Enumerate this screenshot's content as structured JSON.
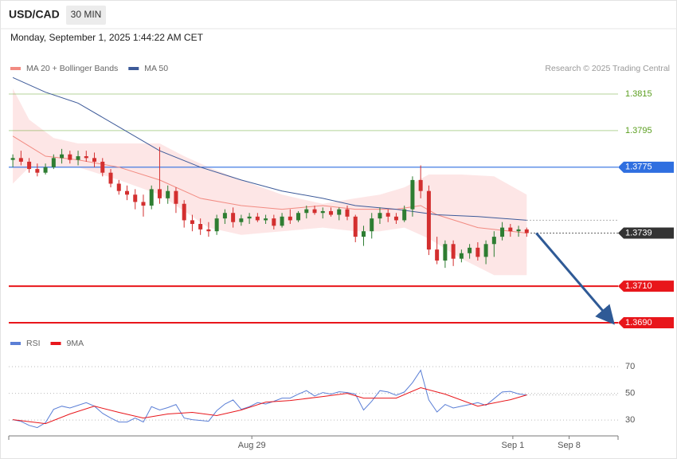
{
  "header": {
    "symbol": "USD/CAD",
    "interval": "30 MIN",
    "timestamp": "Monday, September 1, 2025 1:44:22 AM CET"
  },
  "chart_data": [
    {
      "type": "candlestick",
      "credit": "Research © 2025 Trading Central",
      "up_color": "#2e7d32",
      "down_color": "#d32f2f",
      "xlim": [
        -0.5,
        74.2
      ],
      "ylim": [
        1.3685,
        1.3825
      ],
      "open": [
        1.3779,
        1.378,
        1.3778,
        1.3774,
        1.3772,
        1.3775,
        1.378,
        1.3782,
        1.3779,
        1.3781,
        1.378,
        1.3778,
        1.3772,
        1.3766,
        1.3762,
        1.376,
        1.3756,
        1.3754,
        1.3763,
        1.3758,
        1.3762,
        1.3755,
        1.3746,
        1.3744,
        1.3741,
        1.374,
        1.3747,
        1.375,
        1.3745,
        1.3747,
        1.3748,
        1.3746,
        1.3747,
        1.3743,
        1.3748,
        1.3746,
        1.375,
        1.3752,
        1.375,
        1.3751,
        1.3749,
        1.3752,
        1.3748,
        1.3737,
        1.374,
        1.3747,
        1.375,
        1.3748,
        1.3746,
        1.3752,
        1.3768,
        1.3762,
        1.373,
        1.3724,
        1.3733,
        1.3725,
        1.3728,
        1.3731,
        1.3726,
        1.3733,
        1.3737,
        1.3742,
        1.374,
        1.3741
      ],
      "high": [
        1.3782,
        1.3784,
        1.378,
        1.3777,
        1.3777,
        1.3782,
        1.3785,
        1.3784,
        1.3784,
        1.3784,
        1.3783,
        1.378,
        1.3774,
        1.3768,
        1.3765,
        1.3763,
        1.376,
        1.3765,
        1.3786,
        1.3765,
        1.3764,
        1.3757,
        1.3749,
        1.3747,
        1.3745,
        1.3749,
        1.3752,
        1.3753,
        1.3749,
        1.375,
        1.375,
        1.3749,
        1.3749,
        1.375,
        1.3752,
        1.3751,
        1.3754,
        1.3754,
        1.3753,
        1.3753,
        1.3753,
        1.3754,
        1.3749,
        1.3743,
        1.375,
        1.3753,
        1.3752,
        1.375,
        1.3754,
        1.377,
        1.3776,
        1.3765,
        1.3737,
        1.3735,
        1.3735,
        1.373,
        1.3733,
        1.3734,
        1.3735,
        1.374,
        1.3745,
        1.3744,
        1.3743,
        1.3742
      ],
      "low": [
        1.3775,
        1.3776,
        1.3772,
        1.377,
        1.3771,
        1.3774,
        1.3777,
        1.3777,
        1.3776,
        1.3778,
        1.3775,
        1.377,
        1.3764,
        1.376,
        1.3757,
        1.3752,
        1.3748,
        1.3752,
        1.3755,
        1.3755,
        1.375,
        1.3742,
        1.374,
        1.3738,
        1.3737,
        1.3738,
        1.3744,
        1.3742,
        1.3743,
        1.3744,
        1.3745,
        1.3744,
        1.3741,
        1.3742,
        1.3744,
        1.3745,
        1.3747,
        1.3749,
        1.3747,
        1.3748,
        1.3746,
        1.3746,
        1.3734,
        1.3732,
        1.3736,
        1.3744,
        1.3745,
        1.3744,
        1.3745,
        1.3748,
        1.3758,
        1.3727,
        1.3722,
        1.372,
        1.3721,
        1.3723,
        1.3725,
        1.3724,
        1.3722,
        1.3726,
        1.3735,
        1.3737,
        1.3737,
        1.3737
      ],
      "close": [
        1.378,
        1.3778,
        1.3774,
        1.3772,
        1.3775,
        1.378,
        1.3782,
        1.3779,
        1.3781,
        1.378,
        1.3778,
        1.3772,
        1.3766,
        1.3762,
        1.376,
        1.3756,
        1.3754,
        1.3763,
        1.3758,
        1.3762,
        1.3755,
        1.3746,
        1.3744,
        1.3741,
        1.374,
        1.3747,
        1.375,
        1.3745,
        1.3747,
        1.3748,
        1.3746,
        1.3747,
        1.3743,
        1.3748,
        1.3746,
        1.375,
        1.3752,
        1.375,
        1.3751,
        1.3749,
        1.3752,
        1.3748,
        1.3737,
        1.374,
        1.3747,
        1.375,
        1.3748,
        1.3746,
        1.3752,
        1.3768,
        1.3762,
        1.373,
        1.3724,
        1.3733,
        1.3725,
        1.3728,
        1.3731,
        1.3726,
        1.3733,
        1.3737,
        1.3742,
        1.374,
        1.3741,
        1.3739
      ],
      "bands": {
        "color": "#fde2e2",
        "x": [
          0,
          2,
          5,
          8,
          13,
          18,
          21,
          24,
          28,
          33,
          38,
          42,
          45,
          48,
          51,
          55,
          59,
          63
        ],
        "upper": [
          1.3818,
          1.3801,
          1.3791,
          1.3788,
          1.3788,
          1.3788,
          1.3781,
          1.3775,
          1.3768,
          1.376,
          1.3755,
          1.3758,
          1.376,
          1.3764,
          1.3771,
          1.3771,
          1.377,
          1.376
        ],
        "lower": [
          1.3766,
          1.3775,
          1.3775,
          1.3775,
          1.3768,
          1.376,
          1.3751,
          1.3742,
          1.3738,
          1.374,
          1.3742,
          1.374,
          1.374,
          1.3742,
          1.3736,
          1.3725,
          1.3716,
          1.3716
        ]
      },
      "series": [
        {
          "name": "MA 20 + Bollinger Bands",
          "color": "#f28b82",
          "x": [
            0,
            4,
            8,
            13,
            18,
            23,
            28,
            33,
            38,
            42,
            47,
            50,
            52,
            57,
            63
          ],
          "values": [
            1.3792,
            1.3781,
            1.3779,
            1.3775,
            1.3768,
            1.3758,
            1.3754,
            1.3752,
            1.3754,
            1.3752,
            1.3752,
            1.3754,
            1.3749,
            1.3742,
            1.3739
          ]
        },
        {
          "name": "MA 50",
          "color": "#3d5a99",
          "x": [
            0,
            4,
            8,
            13,
            18,
            23,
            28,
            33,
            38,
            42,
            47,
            52,
            57,
            63
          ],
          "values": [
            1.3824,
            1.3816,
            1.381,
            1.3797,
            1.3784,
            1.3775,
            1.3768,
            1.3762,
            1.3758,
            1.3754,
            1.3752,
            1.3749,
            1.3748,
            1.3746
          ]
        }
      ],
      "levels": [
        {
          "value": 1.3815,
          "color": "#5a9e1e",
          "box": false,
          "dotted": false
        },
        {
          "value": 1.3795,
          "color": "#5a9e1e",
          "box": false,
          "dotted": false
        },
        {
          "value": 1.3775,
          "color": "#2f6fe0",
          "box": true,
          "dotted": false
        },
        {
          "value": 1.3739,
          "color": "#333333",
          "box": true,
          "dotted": true
        },
        {
          "value": 1.371,
          "label": "1.3710",
          "color": "#e8161b",
          "box": true,
          "dotted": false
        },
        {
          "value": 1.369,
          "label": "1.3690",
          "color": "#e8161b",
          "box": true,
          "dotted": false
        }
      ]
    },
    {
      "type": "line",
      "xlim": [
        -0.5,
        74.2
      ],
      "ylim": [
        19,
        79
      ],
      "yticks": [
        30,
        50,
        70
      ],
      "grid": true,
      "xticks": [
        {
          "value": 29.3,
          "label": "Aug 29"
        },
        {
          "value": 61.3,
          "label": "Sep 1"
        },
        {
          "value": 68.2,
          "label": "Sep 8"
        }
      ],
      "series": [
        {
          "name": "RSI",
          "color": "#5b7fd6",
          "x": [
            0,
            1,
            2,
            3,
            4,
            5,
            6,
            7,
            8,
            9,
            10,
            11,
            12,
            13,
            14,
            15,
            16,
            17,
            18,
            19,
            20,
            21,
            22,
            23,
            24,
            25,
            26,
            27,
            28,
            29,
            30,
            31,
            32,
            33,
            34,
            35,
            36,
            37,
            38,
            39,
            40,
            41,
            42,
            43,
            44,
            45,
            46,
            47,
            48,
            49,
            50,
            51,
            52,
            53,
            54,
            55,
            56,
            57,
            58,
            59,
            60,
            61,
            62,
            63
          ],
          "values": [
            30.3,
            29,
            26,
            24.3,
            28,
            38,
            40.4,
            39,
            41,
            43,
            40.4,
            35,
            31.5,
            28.5,
            28.5,
            31.5,
            28.5,
            40,
            37.5,
            39.3,
            41.6,
            31.5,
            30.3,
            29.7,
            29.1,
            37,
            42,
            45,
            38,
            40,
            43,
            42,
            44,
            46.4,
            46.4,
            49.4,
            52,
            48,
            50.6,
            49.4,
            51.2,
            50.6,
            49.4,
            37.5,
            44,
            52,
            51,
            48.5,
            51,
            58,
            67.3,
            45,
            36,
            41.6,
            39,
            40.4,
            41.6,
            43,
            41,
            46,
            51,
            51.5,
            49.5,
            48.8
          ]
        },
        {
          "name": "9MA",
          "color": "#e8161b",
          "x": [
            0,
            4,
            7,
            10,
            13,
            16,
            19,
            22,
            25,
            28,
            31,
            34,
            38,
            41,
            43,
            47,
            50,
            53,
            57,
            61,
            63
          ],
          "values": [
            30.3,
            27.3,
            34.5,
            40.4,
            35.7,
            31.5,
            34.5,
            35.7,
            33.3,
            37.5,
            43.4,
            44.6,
            47.6,
            50,
            46.4,
            46.4,
            54.2,
            49.4,
            40.4,
            45.2,
            48.8
          ]
        }
      ]
    }
  ]
}
